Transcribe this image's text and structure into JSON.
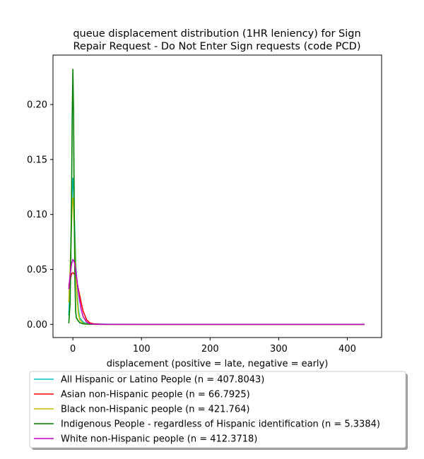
{
  "chart_data": {
    "type": "line",
    "title_lines": [
      "queue displacement distribution (1HR leniency) for Sign",
      "Repair Request - Do Not Enter Sign  requests (code PCD)"
    ],
    "xlabel": "displacement (positive = late, negative = early)",
    "ylabel": "",
    "xlim": [
      -29,
      450
    ],
    "ylim": [
      -0.012,
      0.245
    ],
    "xticks": [
      0,
      100,
      200,
      300,
      400
    ],
    "xtick_labels": [
      "0",
      "100",
      "200",
      "300",
      "400"
    ],
    "yticks": [
      0.0,
      0.05,
      0.1,
      0.15,
      0.2
    ],
    "ytick_labels": [
      "0.00",
      "0.05",
      "0.10",
      "0.15",
      "0.20"
    ],
    "grid": false,
    "legend_placement": "below",
    "series": [
      {
        "name": "All Hispanic or Latino People (n = 407.8043)",
        "color": "#00bfbf",
        "x": [
          -6,
          -4,
          -2,
          -1,
          0,
          1,
          2,
          4,
          6,
          8,
          10,
          15,
          20,
          30,
          50,
          100,
          200,
          300,
          425
        ],
        "y": [
          0.008,
          0.04,
          0.095,
          0.122,
          0.133,
          0.122,
          0.1,
          0.06,
          0.03,
          0.014,
          0.006,
          0.002,
          0.0008,
          0.0003,
          0.0001,
          0.0,
          0.0,
          0.0,
          0.0
        ]
      },
      {
        "name": "Asian non-Hispanic people (n = 66.7925)",
        "color": "#ff0000",
        "x": [
          -6,
          -4,
          -2,
          0,
          2,
          4,
          6,
          8,
          10,
          12,
          15,
          20,
          25,
          30,
          40,
          60,
          100,
          200,
          300,
          425
        ],
        "y": [
          0.035,
          0.04,
          0.046,
          0.047,
          0.046,
          0.043,
          0.038,
          0.032,
          0.026,
          0.02,
          0.012,
          0.004,
          0.0013,
          0.0005,
          0.0001,
          0.0,
          0.0,
          0.0,
          0.0,
          0.0
        ]
      },
      {
        "name": "Black non-Hispanic people (n = 421.764)",
        "color": "#bfbf00",
        "x": [
          -6,
          -4,
          -2,
          -1,
          0,
          1,
          2,
          4,
          6,
          8,
          10,
          15,
          20,
          30,
          60,
          100,
          200,
          300,
          425
        ],
        "y": [
          0.02,
          0.05,
          0.09,
          0.108,
          0.115,
          0.108,
          0.09,
          0.052,
          0.024,
          0.01,
          0.004,
          0.001,
          0.0004,
          0.0001,
          0.0,
          0.0,
          0.0,
          0.0,
          0.0
        ]
      },
      {
        "name": "Indigenous People - regardless of Hispanic identification (n = 5.3384)",
        "color": "#008000",
        "x": [
          -6,
          -4,
          -2,
          -1,
          0,
          1,
          2,
          3,
          4,
          5,
          6,
          8,
          10,
          15,
          20,
          30,
          50,
          100,
          200,
          300,
          425
        ],
        "y": [
          0.001,
          0.02,
          0.11,
          0.19,
          0.232,
          0.19,
          0.1,
          0.04,
          0.012,
          0.006,
          0.005,
          0.003,
          0.0015,
          0.0005,
          0.0002,
          0.0001,
          0.0,
          0.0,
          0.0,
          0.0,
          0.0
        ]
      },
      {
        "name": "White non-Hispanic people (n = 412.3718)",
        "color": "#bf00bf",
        "x": [
          -6,
          -4,
          -2,
          0,
          2,
          4,
          6,
          8,
          10,
          12,
          15,
          20,
          25,
          30,
          40,
          60,
          100,
          200,
          300,
          425
        ],
        "y": [
          0.032,
          0.045,
          0.055,
          0.059,
          0.057,
          0.05,
          0.04,
          0.03,
          0.021,
          0.014,
          0.007,
          0.002,
          0.0006,
          0.0002,
          0.0,
          0.0,
          0.0,
          0.0,
          0.0,
          0.0
        ]
      }
    ]
  }
}
